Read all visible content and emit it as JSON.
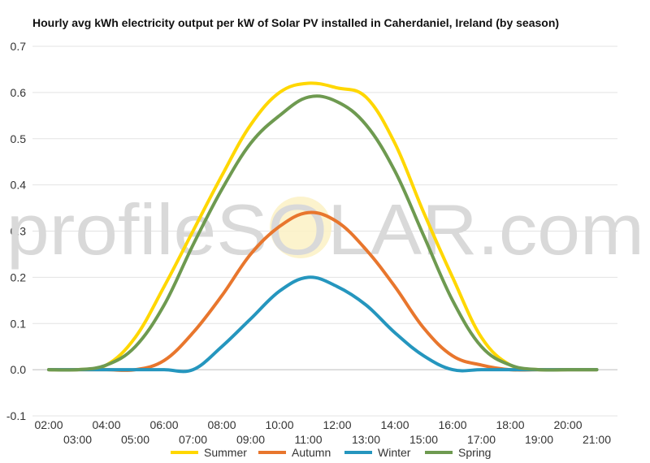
{
  "chart_data": {
    "type": "line",
    "title": "Hourly avg kWh electricity output per kW of Solar PV installed in Caherdaniel, Ireland (by season)",
    "watermark": "profileSOLAR.com",
    "x": [
      "02:00",
      "03:00",
      "04:00",
      "05:00",
      "06:00",
      "07:00",
      "08:00",
      "09:00",
      "10:00",
      "11:00",
      "12:00",
      "13:00",
      "14:00",
      "15:00",
      "16:00",
      "17:00",
      "18:00",
      "19:00",
      "20:00",
      "21:00"
    ],
    "x_tick_labels_row1": [
      "02:00",
      "04:00",
      "06:00",
      "08:00",
      "10:00",
      "12:00",
      "14:00",
      "16:00",
      "18:00",
      "20:00"
    ],
    "x_tick_labels_row2": [
      "03:00",
      "05:00",
      "07:00",
      "09:00",
      "11:00",
      "13:00",
      "15:00",
      "17:00",
      "19:00",
      "21:00"
    ],
    "ylim": [
      -0.1,
      0.7
    ],
    "y_ticks": [
      "-0.1",
      "0.0",
      "0.1",
      "0.2",
      "0.3",
      "0.4",
      "0.5",
      "0.6",
      "0.7"
    ],
    "grid": "horizontal",
    "legend_position": "bottom",
    "series": [
      {
        "name": "Summer",
        "color": "#ffd700",
        "values": [
          0.0,
          0.0,
          0.01,
          0.07,
          0.18,
          0.3,
          0.42,
          0.53,
          0.6,
          0.62,
          0.61,
          0.59,
          0.49,
          0.34,
          0.2,
          0.07,
          0.01,
          0.0,
          0.0,
          0.0
        ]
      },
      {
        "name": "Autumn",
        "color": "#e8762d",
        "values": [
          0.0,
          0.0,
          0.0,
          0.0,
          0.02,
          0.08,
          0.16,
          0.25,
          0.31,
          0.34,
          0.32,
          0.26,
          0.18,
          0.09,
          0.03,
          0.01,
          0.0,
          0.0,
          0.0,
          0.0
        ]
      },
      {
        "name": "Winter",
        "color": "#2596be",
        "values": [
          0.0,
          0.0,
          0.0,
          0.0,
          0.0,
          0.0,
          0.05,
          0.11,
          0.17,
          0.2,
          0.18,
          0.14,
          0.08,
          0.03,
          0.0,
          0.0,
          0.0,
          0.0,
          0.0,
          0.0
        ]
      },
      {
        "name": "Spring",
        "color": "#6e9a50",
        "values": [
          0.0,
          0.0,
          0.01,
          0.05,
          0.14,
          0.27,
          0.39,
          0.49,
          0.55,
          0.59,
          0.58,
          0.53,
          0.43,
          0.29,
          0.15,
          0.05,
          0.01,
          0.0,
          0.0,
          0.0
        ]
      }
    ]
  }
}
